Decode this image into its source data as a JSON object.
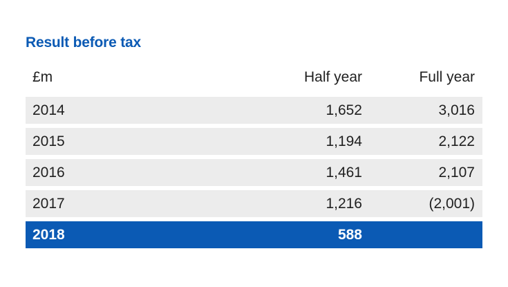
{
  "title": "Result before tax",
  "header": {
    "unit": "£m",
    "half_year": "Half year",
    "full_year": "Full year"
  },
  "rows": [
    {
      "year": "2014",
      "half": "1,652",
      "full": "3,016"
    },
    {
      "year": "2015",
      "half": "1,194",
      "full": "2,122"
    },
    {
      "year": "2016",
      "half": "1,461",
      "full": "2,107"
    },
    {
      "year": "2017",
      "half": "1,216",
      "full": "(2,001)"
    },
    {
      "year": "2018",
      "half": "588",
      "full": ""
    }
  ],
  "colors": {
    "accent": "#0b5ab4",
    "row_background": "#ececec"
  },
  "chart_data": {
    "type": "table",
    "title": "Result before tax",
    "columns": [
      "£m",
      "Half year",
      "Full year"
    ],
    "rows": [
      [
        "2014",
        1652,
        3016
      ],
      [
        "2015",
        1194,
        2122
      ],
      [
        "2016",
        1461,
        2107
      ],
      [
        "2017",
        1216,
        -2001
      ],
      [
        "2018",
        588,
        null
      ]
    ]
  }
}
